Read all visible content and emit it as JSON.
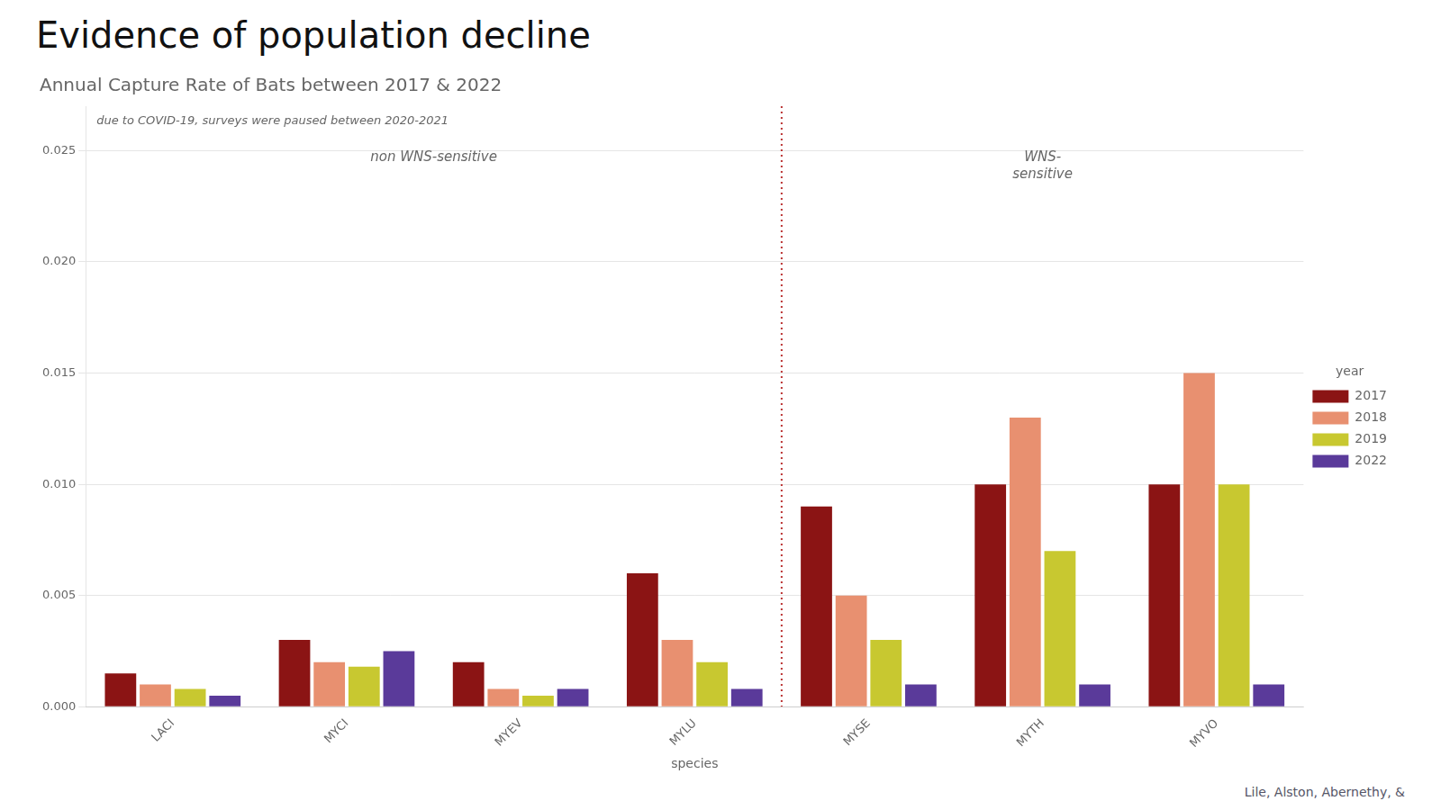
{
  "chart_data": {
    "type": "bar",
    "title": "Annual Capture Rate of Bats between 2017 & 2022",
    "xlabel": "species",
    "categories": [
      "LACI",
      "MYCI",
      "MYEV",
      "MYLU",
      "MYSE",
      "MYTH",
      "MYVO"
    ],
    "series": [
      {
        "name": "2017",
        "color": "#8b1414",
        "values": [
          0.0015,
          0.003,
          0.002,
          0.006,
          0.009,
          0.01,
          0.01
        ]
      },
      {
        "name": "2018",
        "color": "#e89070",
        "values": [
          0.001,
          0.002,
          0.0008,
          0.003,
          0.005,
          0.013,
          0.015
        ]
      },
      {
        "name": "2019",
        "color": "#c8c830",
        "values": [
          0.0008,
          0.0018,
          0.0005,
          0.002,
          0.003,
          0.007,
          0.01
        ]
      },
      {
        "name": "2022",
        "color": "#5a3a9a",
        "values": [
          0.0005,
          0.0025,
          0.0008,
          0.0008,
          0.001,
          0.001,
          0.001
        ]
      }
    ],
    "ylim": [
      0,
      0.027
    ],
    "yticks": [
      {
        "value": 0,
        "label": "0.000"
      },
      0.005,
      {
        "value": 0.01,
        "label": "0.010"
      },
      0.015,
      {
        "value": 0.02,
        "label": "0.020"
      },
      0.025
    ],
    "grid": true,
    "legend": "right",
    "legend_title": "year",
    "annotations": [
      "Evidence of population decline",
      "Lile, Alston, Abernethy, &",
      "due to COVID-19, surveys were paused between 2020-2021",
      "non WNS-sensitive",
      "WNS-\nsensitive"
    ],
    "divider": {
      "between": [
        "MYLU",
        "MYSE"
      ],
      "color": "#bb3333"
    }
  }
}
